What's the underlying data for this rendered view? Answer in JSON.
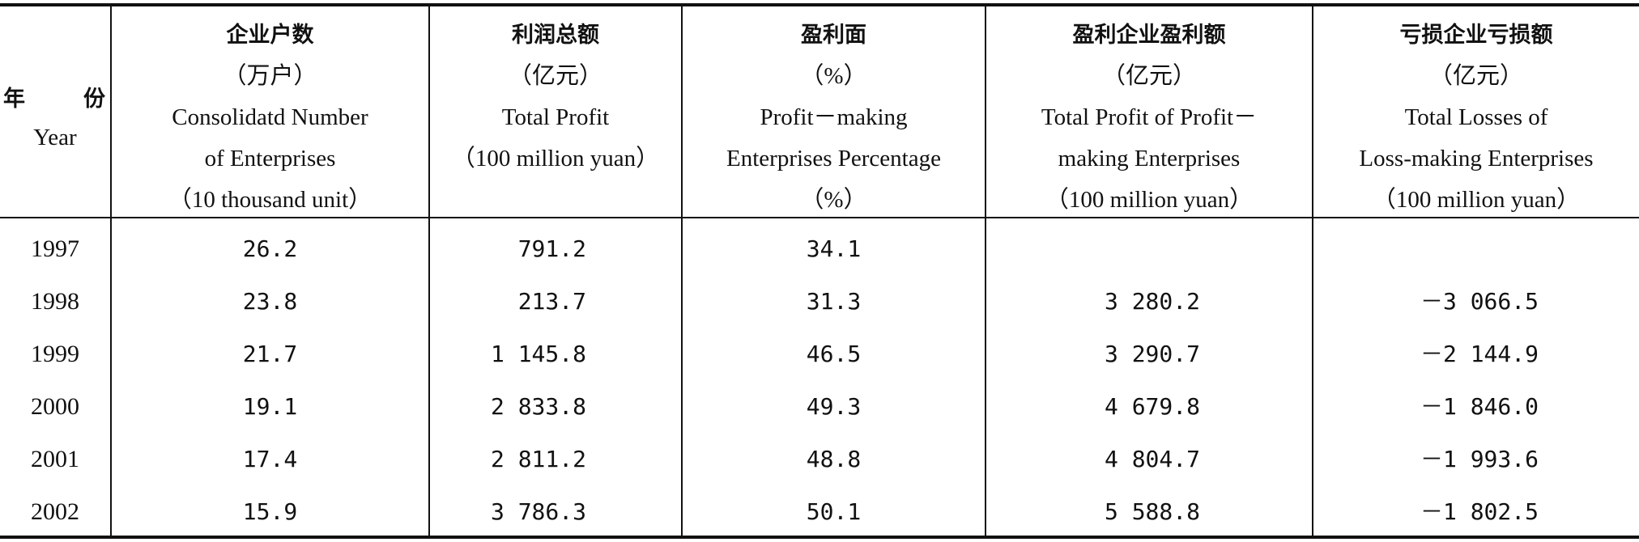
{
  "headers": {
    "year": {
      "cn_left": "年",
      "cn_right": "份",
      "en": "Year"
    },
    "col1": [
      "企业户数",
      "（万户）",
      "Consolidatd Number",
      "of Enterprises",
      "（10 thousand unit）"
    ],
    "col2": [
      "利润总额",
      "（亿元）",
      "Total Profit",
      "（100 million yuan）"
    ],
    "col3": [
      "盈利面",
      "（%）",
      "Profit－making",
      "Enterprises Percentage",
      "（%）"
    ],
    "col4": [
      "盈利企业盈利额",
      "（亿元）",
      "Total Profit of Profit－",
      "making Enterprises",
      "（100 million yuan）"
    ],
    "col5": [
      "亏损企业亏损额",
      "（亿元）",
      "Total Losses of",
      "Loss-making Enterprises",
      "（100 million yuan）"
    ]
  },
  "rows": [
    {
      "year": "1997",
      "enterprises": "26.2",
      "total_profit": "791.2",
      "profit_pct": "34.1",
      "profit_amount": "",
      "loss_amount": ""
    },
    {
      "year": "1998",
      "enterprises": "23.8",
      "total_profit": "213.7",
      "profit_pct": "31.3",
      "profit_amount": "3 280.2",
      "loss_amount": "－3 066.5"
    },
    {
      "year": "1999",
      "enterprises": "21.7",
      "total_profit": "1 145.8",
      "profit_pct": "46.5",
      "profit_amount": "3 290.7",
      "loss_amount": "－2 144.9"
    },
    {
      "year": "2000",
      "enterprises": "19.1",
      "total_profit": "2 833.8",
      "profit_pct": "49.3",
      "profit_amount": "4 679.8",
      "loss_amount": "－1 846.0"
    },
    {
      "year": "2001",
      "enterprises": "17.4",
      "total_profit": "2 811.2",
      "profit_pct": "48.8",
      "profit_amount": "4 804.7",
      "loss_amount": "－1 993.6"
    },
    {
      "year": "2002",
      "enterprises": "15.9",
      "total_profit": "3 786.3",
      "profit_pct": "50.1",
      "profit_amount": "5 588.8",
      "loss_amount": "－1 802.5"
    }
  ]
}
